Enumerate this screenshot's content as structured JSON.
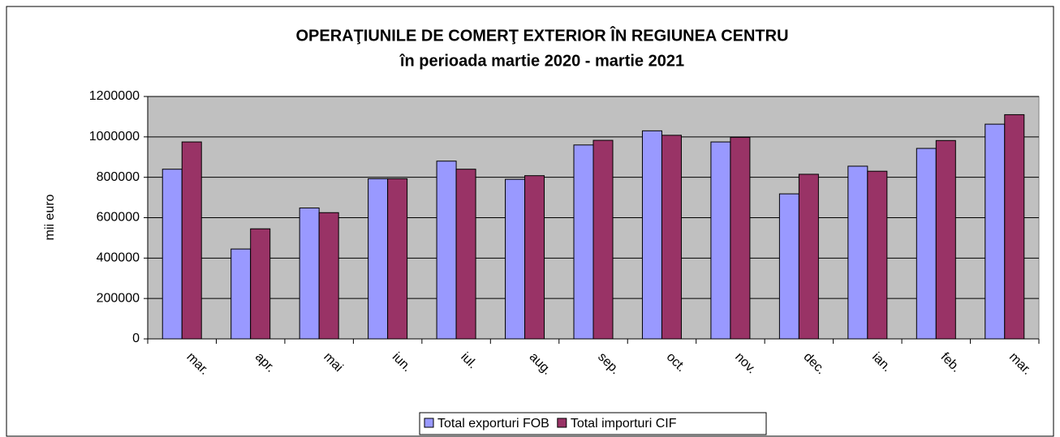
{
  "chart_data": {
    "type": "bar",
    "title": "OPERAŢIUNILE DE COMERŢ EXTERIOR ÎN REGIUNEA CENTRU",
    "subtitle": "în perioada martie 2020 - martie 2021",
    "y_label": "mii euro",
    "categories": [
      "mar.",
      "apr.",
      "mai",
      "iun.",
      "iul.",
      "aug.",
      "sep.",
      "oct.",
      "nov.",
      "dec.",
      "ian.",
      "feb.",
      "mar."
    ],
    "series": [
      {
        "name": "Total exporturi FOB",
        "color": "#9999ff",
        "values": [
          840000,
          445000,
          648000,
          793000,
          880000,
          790000,
          960000,
          1030000,
          975000,
          718000,
          855000,
          943000,
          1063000
        ]
      },
      {
        "name": "Total importuri CIF",
        "color": "#993366",
        "values": [
          975000,
          545000,
          625000,
          793000,
          840000,
          808000,
          983000,
          1008000,
          998000,
          815000,
          830000,
          982000,
          1110000
        ]
      }
    ],
    "ylim": [
      0,
      1200000
    ],
    "yticks": [
      0,
      200000,
      400000,
      600000,
      800000,
      1000000,
      1200000
    ],
    "grid": true,
    "plot_background": "#c0c0c0",
    "legend": "bottom"
  }
}
